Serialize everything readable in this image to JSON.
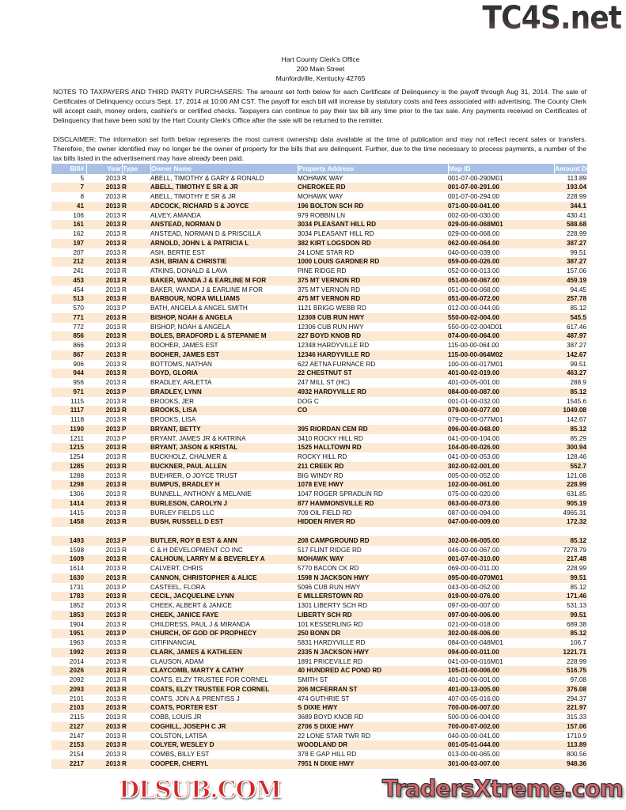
{
  "watermarks": {
    "top": "TC4S.net",
    "middle": "DLSUB.COM",
    "bottom": "TradersXtreme.com"
  },
  "office": {
    "name": "Hart County Clerk's Office",
    "street": "200 Main Street",
    "city": "Munfordville, Kentucky 42765"
  },
  "notes": "NOTES TO TAXPAYERS AND THIRD PARTY PURCHASERS: The amount set forth below for each Certificate of Delinquency is the payoff through Aug 31, 2014. The sale of Certificates of Delinquency occurs Sept. 17, 2014 at 10:00 AM CST.  The payoff for each bill will increase by statutory costs and fees associated with advertising.  The County Clerk will accept cash, money orders, cashier's or certified checks. Taxpayers can continue to pay their tax bill any time prior to the tax sale. Any payments received on Certificates of Delinquency that have been sold by the Hart County Clerk's Office after the sale will be returned to the remitter.",
  "disclaimer": "DISCLAIMER: The information set forth below represents the most current ownership data available at the time of publication and may not reflect recent sales or transfers. Therefore, the owner identified may no longer be the owner of property for the bills that are delinquent. Further, due to the time necessary to process payments, a number of the tax bills listed in the advertisement may have already been paid.",
  "colors": {
    "header": "#a9c0e4",
    "alt_row": "#fde8d2"
  },
  "table": {
    "columns": [
      "Bill#",
      "Year",
      "Type",
      "Owner Name",
      "Property Address",
      "Map ID",
      "Amount Due"
    ],
    "rows": [
      [
        "5",
        "2013",
        "R",
        "ABELL, TIMOTHY & GARY & RONALD",
        "MOHAWK WAY",
        "001-07-00-290M01",
        "113.89"
      ],
      [
        "7",
        "2013",
        "R",
        "ABELL, TIMOTHY E SR & JR",
        "CHEROKEE RD",
        "001-07-00-291.00",
        "193.04"
      ],
      [
        "8",
        "2013",
        "R",
        "ABELL, TIMOTHY E SR & JR",
        "MOHAWK WAY",
        "001-07-00-294.00",
        "228.99"
      ],
      [
        "41",
        "2013",
        "R",
        "ADCOCK, RICHARD S & JOYCE",
        "196 BOLTON SCH RD",
        "071-00-00-041.00",
        "344.1"
      ],
      [
        "106",
        "2013",
        "R",
        "ALVEY, AMANDA",
        "979 ROBBIN LN",
        "002-00-00-030.00",
        "430.41"
      ],
      [
        "161",
        "2013",
        "R",
        "ANSTEAD, NORMAN D",
        "3034 PLEASANT HILL RD",
        "029-00-00-068M01",
        "588.68"
      ],
      [
        "162",
        "2013",
        "R",
        "ANSTEAD, NORMAN D & PRISCILLA",
        "3034 PLEASANT HILL RD",
        "029-00-00-068.00",
        "228.99"
      ],
      [
        "197",
        "2013",
        "R",
        "ARNOLD, JOHN L & PATRICIA L",
        "382 KIRT LOGSDON RD",
        "062-00-00-064.00",
        "387.27"
      ],
      [
        "207",
        "2013",
        "R",
        "ASH, BERTIE EST",
        "24 LONE STAR RD",
        "040-00-00-039.00",
        "99.51"
      ],
      [
        "212",
        "2013",
        "R",
        "ASH, BRIAN & CHRISTIE",
        "1000 LOUIS GARDNER RD",
        "059-00-00-026.00",
        "387.27"
      ],
      [
        "241",
        "2013",
        "R",
        "ATKINS, DONALD & LAVA",
        "PINE RIDGE RD",
        "052-00-00-013.00",
        "157.06"
      ],
      [
        "453",
        "2013",
        "R",
        "BAKER, WANDA J & EARLINE M FOR",
        "375 MT VERNON RD",
        "051-00-00-067.00",
        "459.19"
      ],
      [
        "454",
        "2013",
        "R",
        "BAKER, WANDA J & EARLINE M FOR",
        "375 MT VERNON RD",
        "051-00-00-068.00",
        "94.45"
      ],
      [
        "513",
        "2013",
        "R",
        "BARBOUR, NORA WILLIAMS",
        "475 MT VERNON RD",
        "051-00-00-072.00",
        "257.78"
      ],
      [
        "570",
        "2013",
        "P",
        "BATH, ANGELA & ANGEL SMITH",
        "1121 BRIGG WEBB RD",
        "012-00-00-044.00",
        "85.12"
      ],
      [
        "771",
        "2013",
        "R",
        "BISHOP, NOAH & ANGELA",
        "12308 CUB RUN HWY",
        "550-00-02-004.00",
        "545.5"
      ],
      [
        "772",
        "2013",
        "R",
        "BISHOP, NOAH & ANGELA",
        "12306 CUB RUN HWY",
        "550-00-02-004D01",
        "617.46"
      ],
      [
        "856",
        "2013",
        "R",
        "BOLES, BRADFORD L & STEPANIE M",
        "227 BOYD KNOB RD",
        "074-00-00-064.00",
        "487.97"
      ],
      [
        "866",
        "2013",
        "R",
        "BOOHER, JAMES EST",
        "12348 HARDYVILLE RD",
        "115-00-00-064.00",
        "387.27"
      ],
      [
        "867",
        "2013",
        "R",
        "BOOHER, JAMES EST",
        "12346 HARDYVILLE RD",
        "115-00-00-064M02",
        "142.67"
      ],
      [
        "906",
        "2013",
        "R",
        "BOTTOMS, NATHAN",
        "622 AETNA FURNACE RD",
        "100-00-00-017M01",
        "99.51"
      ],
      [
        "944",
        "2013",
        "R",
        "BOYD, GLORIA",
        "22 CHESTNUT ST",
        "401-00-02-019.00",
        "463.27"
      ],
      [
        "956",
        "2013",
        "R",
        "BRADLEY, ARLETTA",
        "247 MILL ST (HC)",
        "401-00-05-001.00",
        "288.9"
      ],
      [
        "971",
        "2013",
        "P",
        "BRADLEY, LYNN",
        "4932 HARDYVILLE RD",
        "084-00-00-087.00",
        "85.12"
      ],
      [
        "1115",
        "2013",
        "R",
        "BROOKS, JER",
        "DOG C",
        "001-01-00-032.00",
        "1545.6"
      ],
      [
        "1117",
        "2013",
        "R",
        "BROOKS, LISA",
        "CO",
        "079-00-00-077.00",
        "1049.08"
      ],
      [
        "1118",
        "2013",
        "R",
        "BROOKS, LISA",
        "",
        "079-00-00-077M01",
        "142.67"
      ],
      [
        "1190",
        "2013",
        "P",
        "BRYANT, BETTY",
        "395 RIORDAN CEM RD",
        "096-00-00-048.00",
        "85.12"
      ],
      [
        "1211",
        "2013",
        "P",
        "BRYANT, JAMES JR & KATRINA",
        "3410 ROCKY HILL RD",
        "041-00-00-104.00",
        "85.29"
      ],
      [
        "1215",
        "2013",
        "R",
        "BRYANT, JASON & KRISTAL",
        "1525 HALLTOWN RD",
        "104-00-00-026.00",
        "300.94"
      ],
      [
        "1254",
        "2013",
        "R",
        "BUCKHOLZ, CHALMER &",
        "ROCKY HILL RD",
        "041-00-00-053.00",
        "128.46"
      ],
      [
        "1285",
        "2013",
        "R",
        "BUCKNER, PAUL ALLEN",
        "211 CREEK RD",
        "302-00-02-001.00",
        "552.7"
      ],
      [
        "1288",
        "2013",
        "R",
        "BUEHRER, O JOYCE TRUST",
        "BIG WINDY RD",
        "005-00-00-052.00",
        "121.08"
      ],
      [
        "1298",
        "2013",
        "R",
        "BUMPUS, BRADLEY H",
        "1078 EVE HWY",
        "102-00-00-061.00",
        "228.99"
      ],
      [
        "1306",
        "2013",
        "R",
        "BUNNELL, ANTHONY & MELANIE",
        "1047 ROGER SPRADLIN RD",
        "075-00-00-020.00",
        "631.85"
      ],
      [
        "1414",
        "2013",
        "R",
        "BURLESON, CAROLYN J",
        "877 HAMMONSVILLE RD",
        "063-00-00-073.00",
        "905.19"
      ],
      [
        "1415",
        "2013",
        "R",
        "BURLEY FIELDS LLC",
        "709 OIL FIELD RD",
        "087-00-00-094.00",
        "4965.31"
      ],
      [
        "1458",
        "2013",
        "R",
        "BUSH, RUSSELL D EST",
        "HIDDEN RIVER RD",
        "047-00-00-009.00",
        "172.32"
      ],
      [
        "",
        "",
        "",
        "",
        "",
        "",
        ""
      ],
      [
        "1493",
        "2013",
        "P",
        "BUTLER, ROY B EST & ANN",
        "208 CAMPGROUND RD",
        "302-00-06-005.00",
        "85.12"
      ],
      [
        "1598",
        "2013",
        "R",
        "C & H DEVELOPMENT CO INC",
        "517 FLINT RIDGE RD",
        "046-00-00-067.00",
        "7278.79"
      ],
      [
        "1609",
        "2013",
        "R",
        "CALHOUN, LARRY M & BEVERLEY A",
        "MOHAWK WAY",
        "001-07-00-310.00",
        "217.48"
      ],
      [
        "1614",
        "2013",
        "R",
        "CALVERT, CHRIS",
        "5770 BACON CK RD",
        "069-00-00-011.00",
        "228.99"
      ],
      [
        "1630",
        "2013",
        "R",
        "CANNON, CHRISTOPHER & ALICE",
        "1598 N JACKSON HWY",
        "095-00-00-070M01",
        "99.51"
      ],
      [
        "1731",
        "2013",
        "P",
        "CASTEEL, FLORA",
        "5096 CUB RUN HWY",
        "043-00-00-052.00",
        "85.12"
      ],
      [
        "1783",
        "2013",
        "R",
        "CECIL, JACQUELINE LYNN",
        "E MILLERSTOWN RD",
        "019-00-00-076.00",
        "171.46"
      ],
      [
        "1852",
        "2013",
        "R",
        "CHEEK, ALBERT & JANICE",
        "1301 LIBERTY SCH RD",
        "097-00-00-007.00",
        "531.13"
      ],
      [
        "1853",
        "2013",
        "R",
        "CHEEK, JANICE FAYE",
        "LIBERTY SCH RD",
        "097-00-00-006.00",
        "99.51"
      ],
      [
        "1904",
        "2013",
        "R",
        "CHILDRESS, PAUL J & MIRANDA",
        "101 KESSERLING RD",
        "021-00-00-018.00",
        "689.38"
      ],
      [
        "1951",
        "2013",
        "P",
        "CHURCH, OF GOD OF PROPHECY",
        "250 BONN DR",
        "302-00-08-006.00",
        "85.12"
      ],
      [
        "1963",
        "2013",
        "R",
        "CITIFINANCIAL",
        "5831 HARDYVILLE RD",
        "084-00-00-048M01",
        "106.7"
      ],
      [
        "1992",
        "2013",
        "R",
        "CLARK, JAMES & KATHLEEN",
        "2335 N JACKSON HWY",
        "094-00-00-011.00",
        "1221.71"
      ],
      [
        "2014",
        "2013",
        "R",
        "CLAUSON, ADAM",
        "1891 PRICEVILLE RD",
        "041-00-00-016M01",
        "228.99"
      ],
      [
        "2026",
        "2013",
        "R",
        "CLAYCOMB, MARTY & CATHY",
        "40 HUNDRED AC POND RD",
        "105-01-00-006.00",
        "516.75"
      ],
      [
        "2092",
        "2013",
        "R",
        "COATS, ELZY TRUSTEE FOR CORNEL",
        "SMITH ST",
        "401-00-06-001.00",
        "97.08"
      ],
      [
        "2093",
        "2013",
        "R",
        "COATS, ELZY TRUSTEE FOR CORNEL",
        "206 MCFERRAN ST",
        "401-00-13-005.00",
        "376.08"
      ],
      [
        "2101",
        "2013",
        "R",
        "COATS, JON A & PRENTISS J",
        "474 GUTHRIE ST",
        "407-00-05-016.00",
        "294.37"
      ],
      [
        "2103",
        "2013",
        "R",
        "COATS, PORTER EST",
        "S DIXIE HWY",
        "700-00-06-007.00",
        "221.97"
      ],
      [
        "2115",
        "2013",
        "R",
        "COBB, LOUIS JR",
        "3689 BOYD KNOB RD",
        "500-00-06-004.00",
        "315.33"
      ],
      [
        "2127",
        "2013",
        "R",
        "COGHILL, JOSEPH C JR",
        "2706 S DIXIE HWY",
        "700-00-07-002.00",
        "157.06"
      ],
      [
        "2147",
        "2013",
        "R",
        "COLSTON, LATISA",
        "22 LONE STAR TWR RD",
        "040-00-00-041.00",
        "1710.9"
      ],
      [
        "2153",
        "2013",
        "R",
        "COLYER, WESLEY D",
        "WOODLAND DR",
        "001-05-01-044.00",
        "113.89"
      ],
      [
        "2154",
        "2013",
        "R",
        "COMBS, BILLY EST",
        "378 E GAP HILL RD",
        "013-00-00-065.00",
        "800.56"
      ],
      [
        "2217",
        "2013",
        "R",
        "COOPER, CHERYL",
        "7951 N DIXIE HWY",
        "301-00-03-007.00",
        "948.36"
      ]
    ]
  }
}
